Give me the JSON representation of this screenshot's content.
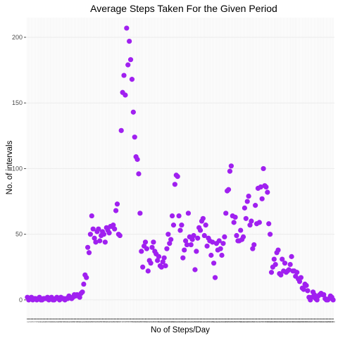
{
  "chart_data": {
    "type": "scatter",
    "title": "Average Steps Taken For the Given Period",
    "xlabel": "No of Steps/Day",
    "ylabel": "No. of intervals",
    "ylim": [
      -14,
      215
    ],
    "yticks": [
      0,
      50,
      100,
      150,
      200
    ],
    "grid": true,
    "legend": "none",
    "colors": {
      "point": "#a020f0",
      "grid": "#ebebeb",
      "tick": "#4d4d4d",
      "background": "#ffffff"
    },
    "values": [
      2,
      0,
      1,
      2,
      0,
      1,
      1,
      0,
      1,
      2,
      0,
      0,
      1,
      1,
      1,
      2,
      0,
      1,
      2,
      0,
      0,
      1,
      2,
      1,
      0,
      2,
      1,
      1,
      0,
      1,
      1,
      3,
      2,
      1,
      2,
      4,
      3,
      4,
      3,
      2,
      5,
      6,
      12,
      19,
      17,
      40,
      36,
      50,
      64,
      54,
      47,
      44,
      52,
      54,
      45,
      49,
      52,
      50,
      44,
      55,
      53,
      51,
      56,
      56,
      57,
      54,
      68,
      73,
      50,
      49,
      129,
      158,
      171,
      156,
      207,
      179,
      197,
      183,
      168,
      143,
      124,
      109,
      107,
      96,
      66,
      37,
      25,
      41,
      44,
      39,
      22,
      30,
      28,
      40,
      44,
      37,
      35,
      30,
      33,
      26,
      25,
      29,
      32,
      26,
      39,
      50,
      43,
      46,
      64,
      57,
      88,
      95,
      94,
      64,
      53,
      57,
      32,
      38,
      45,
      42,
      66,
      48,
      42,
      46,
      49,
      23,
      37,
      47,
      55,
      53,
      60,
      62,
      49,
      57,
      41,
      47,
      45,
      34,
      44,
      28,
      17,
      43,
      38,
      45,
      39,
      34,
      43,
      48,
      66,
      83,
      84,
      98,
      102,
      64,
      59,
      63,
      49,
      45,
      45,
      53,
      46,
      48,
      70,
      62,
      75,
      79,
      57,
      60,
      39,
      42,
      72,
      58,
      85,
      59,
      86,
      77,
      100,
      87,
      86,
      82,
      58,
      50,
      21,
      25,
      31,
      27,
      36,
      38,
      20,
      19,
      31,
      22,
      28,
      21,
      22,
      23,
      27,
      33,
      22,
      22,
      18,
      21,
      16,
      14,
      17,
      9,
      8,
      12,
      11,
      7,
      2,
      0,
      2,
      6,
      4,
      1,
      0,
      3,
      4,
      5,
      4,
      4,
      1,
      0,
      0,
      1,
      3,
      2,
      0
    ]
  }
}
